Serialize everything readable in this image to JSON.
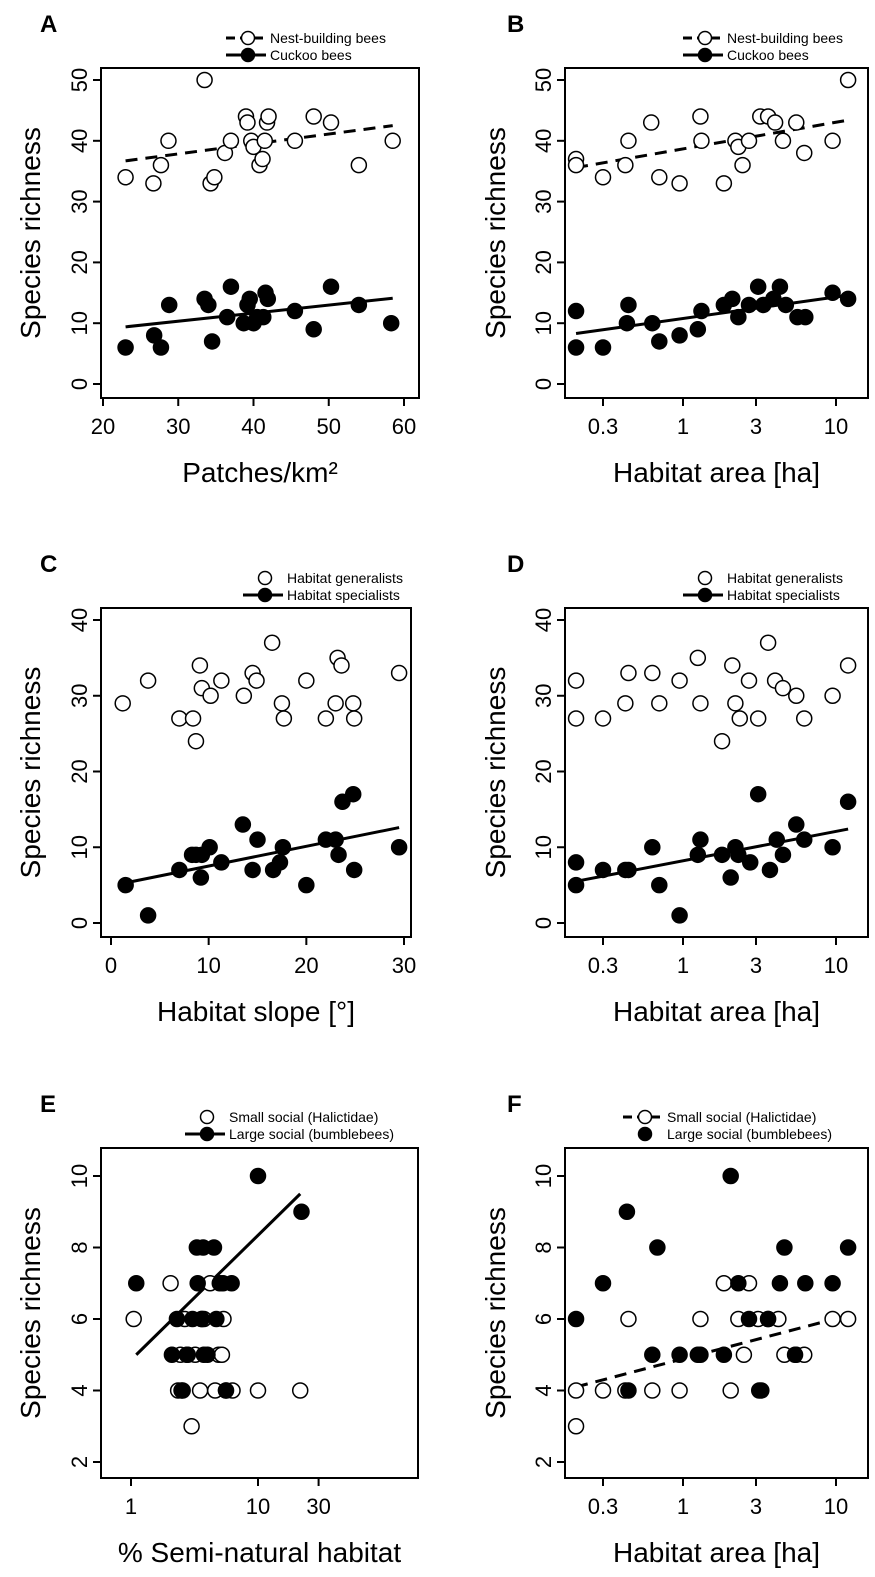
{
  "axis_label_richness": "Species richness",
  "chart_data": [
    {
      "panel": "A",
      "type": "scatter",
      "xscale": "linear",
      "xlabel": "Patches/km²",
      "ylabel": "Species richness",
      "xlim": [
        22,
        60
      ],
      "ylim": [
        0,
        50
      ],
      "xticks": [
        20,
        30,
        40,
        50,
        60
      ],
      "xtick_labels": [
        "20",
        "30",
        "40",
        "50",
        "60"
      ],
      "yticks": [
        0,
        10,
        20,
        30,
        40,
        50
      ],
      "ytick_labels": [
        "0",
        "10",
        "20",
        "30",
        "40",
        "50"
      ],
      "legend": [
        {
          "label": "Nest-building bees",
          "marker": "open",
          "line": "dashed"
        },
        {
          "label": "Cuckoo bees",
          "marker": "filled",
          "line": "solid"
        }
      ],
      "series": [
        {
          "name": "Nest-building bees",
          "marker": "open",
          "x": [
            23,
            26.7,
            27.7,
            28.7,
            33.5,
            34.3,
            34.8,
            36.2,
            37,
            39,
            39.2,
            39.7,
            40,
            40.8,
            41.2,
            41.5,
            41.8,
            42,
            45.5,
            48,
            50.3,
            54,
            58.5
          ],
          "y": [
            34,
            33,
            36,
            40,
            50,
            33,
            34,
            38,
            40,
            44,
            43,
            40,
            39,
            36,
            37,
            40,
            43,
            44,
            40,
            44,
            43,
            36,
            40
          ],
          "fit": [
            [
              23,
              36.7
            ],
            [
              58.5,
              42.5
            ]
          ]
        },
        {
          "name": "Cuckoo bees",
          "marker": "filled",
          "x": [
            23,
            26.8,
            27.7,
            28.8,
            33.5,
            34,
            34.5,
            36.5,
            37,
            38.7,
            39.2,
            39.5,
            40,
            40.5,
            41.3,
            41.6,
            41.9,
            45.5,
            48,
            50.3,
            54,
            58.3
          ],
          "y": [
            6,
            8,
            6,
            13,
            14,
            13,
            7,
            11,
            16,
            10,
            13,
            14,
            10,
            11,
            11,
            15,
            14,
            12,
            9,
            16,
            13,
            10
          ],
          "fit": [
            [
              23,
              9.4
            ],
            [
              58.5,
              14.1
            ]
          ]
        }
      ]
    },
    {
      "panel": "B",
      "type": "scatter",
      "xscale": "log",
      "xlabel": "Habitat area [ha]",
      "ylabel": "Species richness",
      "xlim": [
        0.15,
        15
      ],
      "ylim": [
        0,
        50
      ],
      "xticks": [
        0.3,
        1,
        3,
        10
      ],
      "xtick_labels": [
        "0.3",
        "1",
        "3",
        "10"
      ],
      "yticks": [
        0,
        10,
        20,
        30,
        40,
        50
      ],
      "ytick_labels": [
        "0",
        "10",
        "20",
        "30",
        "40",
        "50"
      ],
      "legend": [
        {
          "label": "Nest-building bees",
          "marker": "open",
          "line": "dashed"
        },
        {
          "label": "Cuckoo bees",
          "marker": "filled",
          "line": "solid"
        }
      ],
      "series": [
        {
          "name": "Nest-building bees",
          "marker": "open",
          "x": [
            0.2,
            0.2,
            0.3,
            0.42,
            0.44,
            0.62,
            0.7,
            0.95,
            1.3,
            1.32,
            1.85,
            2.2,
            2.3,
            2.45,
            2.7,
            3.2,
            3.6,
            4,
            4.5,
            5.5,
            6.2,
            9.5,
            12
          ],
          "y": [
            37,
            36,
            34,
            36,
            40,
            43,
            34,
            33,
            44,
            40,
            33,
            40,
            39,
            36,
            40,
            44,
            44,
            43,
            40,
            43,
            38,
            40,
            50
          ],
          "fit": [
            [
              0.2,
              35.6
            ],
            [
              12,
              43.4
            ]
          ]
        },
        {
          "name": "Cuckoo bees",
          "marker": "filled",
          "x": [
            0.2,
            0.2,
            0.3,
            0.43,
            0.44,
            0.63,
            0.7,
            0.95,
            1.25,
            1.32,
            1.85,
            2.1,
            2.3,
            2.7,
            3.1,
            3.35,
            3.9,
            4.3,
            4.7,
            5.6,
            6.3,
            9.5,
            12
          ],
          "y": [
            12,
            6,
            6,
            10,
            13,
            10,
            7,
            8,
            9,
            12,
            13,
            14,
            11,
            13,
            16,
            13,
            14,
            16,
            13,
            11,
            11,
            15,
            14
          ],
          "fit": [
            [
              0.2,
              8.3
            ],
            [
              12,
              14.6
            ]
          ]
        }
      ]
    },
    {
      "panel": "C",
      "type": "scatter",
      "xscale": "linear",
      "xlabel": "Habitat slope [°]",
      "ylabel": "Species richness",
      "xlim": [
        0,
        30.5
      ],
      "ylim": [
        0,
        40
      ],
      "xticks": [
        0,
        10,
        20,
        30
      ],
      "xtick_labels": [
        "0",
        "10",
        "20",
        "30"
      ],
      "yticks": [
        0,
        10,
        20,
        30,
        40
      ],
      "ytick_labels": [
        "0",
        "10",
        "20",
        "30",
        "40"
      ],
      "legend": [
        {
          "label": "Habitat generalists",
          "marker": "open",
          "line": "none"
        },
        {
          "label": "Habitat specialists",
          "marker": "filled",
          "line": "solid"
        }
      ],
      "series": [
        {
          "name": "Habitat generalists",
          "marker": "open",
          "x": [
            1.2,
            3.8,
            7,
            8.4,
            8.7,
            9.1,
            9.3,
            10.2,
            11.3,
            13.6,
            14.5,
            14.9,
            16.5,
            17.5,
            17.7,
            20,
            22,
            23,
            23.2,
            23.6,
            24.8,
            24.9,
            29.5
          ],
          "y": [
            29,
            32,
            27,
            27,
            24,
            34,
            31,
            30,
            32,
            30,
            33,
            32,
            37,
            29,
            27,
            32,
            27,
            29,
            35,
            34,
            29,
            27,
            33
          ],
          "fit": null
        },
        {
          "name": "Habitat specialists",
          "marker": "filled",
          "x": [
            1.5,
            3.8,
            7,
            8.3,
            8.7,
            9.2,
            9.3,
            10.1,
            11.3,
            13.5,
            14.5,
            15,
            16.6,
            17.3,
            17.6,
            20,
            22,
            23,
            23.3,
            23.7,
            24.8,
            24.9,
            29.5
          ],
          "y": [
            5,
            1,
            7,
            9,
            9,
            6,
            9,
            10,
            8,
            13,
            7,
            11,
            7,
            8,
            10,
            5,
            11,
            11,
            9,
            16,
            17,
            7,
            10
          ],
          "fit": [
            [
              1.5,
              5.3
            ],
            [
              29.5,
              12.6
            ]
          ]
        }
      ]
    },
    {
      "panel": "D",
      "type": "scatter",
      "xscale": "log",
      "xlabel": "Habitat area [ha]",
      "ylabel": "Species richness",
      "xlim": [
        0.15,
        15
      ],
      "ylim": [
        0,
        40
      ],
      "xticks": [
        0.3,
        1,
        3,
        10
      ],
      "xtick_labels": [
        "0.3",
        "1",
        "3",
        "10"
      ],
      "yticks": [
        0,
        10,
        20,
        30,
        40
      ],
      "ytick_labels": [
        "0",
        "10",
        "20",
        "30",
        "40"
      ],
      "legend": [
        {
          "label": "Habitat generalists",
          "marker": "open",
          "line": "none"
        },
        {
          "label": "Habitat specialists",
          "marker": "filled",
          "line": "solid"
        }
      ],
      "series": [
        {
          "name": "Habitat generalists",
          "marker": "open",
          "x": [
            0.2,
            0.2,
            0.3,
            0.42,
            0.44,
            0.63,
            0.7,
            0.95,
            1.25,
            1.3,
            1.8,
            2.1,
            2.2,
            2.35,
            2.7,
            3.1,
            3.6,
            4,
            4.5,
            5.5,
            6.2,
            9.5,
            12
          ],
          "y": [
            32,
            27,
            27,
            29,
            33,
            33,
            29,
            32,
            35,
            29,
            24,
            34,
            29,
            27,
            32,
            27,
            37,
            32,
            31,
            30,
            27,
            30,
            34
          ],
          "fit": null
        },
        {
          "name": "Habitat specialists",
          "marker": "filled",
          "x": [
            0.2,
            0.2,
            0.3,
            0.42,
            0.44,
            0.63,
            0.7,
            0.95,
            1.25,
            1.3,
            1.8,
            2.05,
            2.2,
            2.3,
            2.75,
            3.1,
            3.7,
            4.1,
            4.5,
            5.5,
            6.2,
            9.5,
            12
          ],
          "y": [
            8,
            5,
            7,
            7,
            7,
            10,
            5,
            1,
            9,
            11,
            9,
            6,
            10,
            9,
            8,
            17,
            7,
            11,
            9,
            13,
            11,
            10,
            16
          ],
          "fit": [
            [
              0.2,
              5.5
            ],
            [
              12,
              12.4
            ]
          ]
        }
      ]
    },
    {
      "panel": "E",
      "type": "scatter",
      "xscale": "log",
      "xlabel": "% Semi-natural habitat",
      "ylabel": "Species richness",
      "xlim": [
        0.8,
        40
      ],
      "ylim": [
        1.8,
        11
      ],
      "xticks": [
        1,
        10,
        30
      ],
      "xtick_labels": [
        "1",
        "10",
        "30"
      ],
      "yticks": [
        2,
        4,
        6,
        8,
        10
      ],
      "ytick_labels": [
        "2",
        "4",
        "6",
        "8",
        "10"
      ],
      "legend": [
        {
          "label": "Small social (Halictidae)",
          "marker": "open",
          "line": "none"
        },
        {
          "label": "Large social (bumblebees)",
          "marker": "filled",
          "line": "solid"
        }
      ],
      "series": [
        {
          "name": "Small social (Halictidae)",
          "marker": "open",
          "x": [
            1.05,
            2.05,
            2.35,
            2.45,
            2.55,
            2.65,
            2.75,
            3,
            3.2,
            3.5,
            3.6,
            3.75,
            4.2,
            4.6,
            4.9,
            5.2,
            5.35,
            5.6,
            6.3,
            10,
            21.5
          ],
          "y": [
            6,
            7,
            4,
            5,
            4,
            6,
            5,
            3,
            5,
            4,
            6,
            6,
            7,
            4,
            5,
            5,
            6,
            4,
            4,
            4,
            4
          ],
          "fit": null
        },
        {
          "name": "Large social (bumblebees)",
          "marker": "filled",
          "x": [
            1.1,
            2.1,
            2.3,
            2.5,
            2.8,
            3.05,
            3.3,
            3.35,
            3.6,
            3.7,
            3.75,
            4,
            4.5,
            4.7,
            5.0,
            5.3,
            5.6,
            6.2,
            10,
            22
          ],
          "y": [
            7,
            5,
            6,
            4,
            5,
            6,
            8,
            7,
            6,
            8,
            5,
            5,
            8,
            6,
            7,
            7,
            4,
            7,
            10,
            9
          ],
          "fit": [
            [
              1.1,
              5
            ],
            [
              21.5,
              9.5
            ]
          ]
        }
      ]
    },
    {
      "panel": "F",
      "type": "scatter",
      "xscale": "log",
      "xlabel": "Habitat area [ha]",
      "ylabel": "Species richness",
      "xlim": [
        0.15,
        15
      ],
      "ylim": [
        1.8,
        11
      ],
      "xticks": [
        0.3,
        1,
        3,
        10
      ],
      "xtick_labels": [
        "0.3",
        "1",
        "3",
        "10"
      ],
      "yticks": [
        2,
        4,
        6,
        8,
        10
      ],
      "ytick_labels": [
        "2",
        "4",
        "6",
        "8",
        "10"
      ],
      "legend": [
        {
          "label": "Small social (Halictidae)",
          "marker": "open",
          "line": "dashed"
        },
        {
          "label": "Large social (bumblebees)",
          "marker": "filled",
          "line": "none"
        }
      ],
      "series": [
        {
          "name": "Small social (Halictidae)",
          "marker": "open",
          "x": [
            0.2,
            0.2,
            0.3,
            0.42,
            0.44,
            0.63,
            0.95,
            1.3,
            1.85,
            2.05,
            2.3,
            2.5,
            2.7,
            3.1,
            3.6,
            4.2,
            4.6,
            5.5,
            6.2,
            9.5,
            12
          ],
          "y": [
            4,
            3,
            4,
            4,
            6,
            4,
            4,
            6,
            7,
            4,
            6,
            5,
            7,
            6,
            6,
            6,
            5,
            5,
            5,
            6,
            6
          ],
          "fit": [
            [
              0.2,
              4.1
            ],
            [
              12,
              6.1
            ]
          ]
        },
        {
          "name": "Large social (bumblebees)",
          "marker": "filled",
          "x": [
            0.2,
            0.3,
            0.43,
            0.44,
            0.63,
            0.68,
            0.95,
            1.25,
            1.3,
            1.85,
            2.05,
            2.3,
            2.7,
            3.15,
            3.25,
            3.6,
            4.3,
            4.6,
            5.4,
            6.3,
            9.5,
            12
          ],
          "y": [
            6,
            7,
            9,
            4,
            5,
            8,
            5,
            5,
            5,
            5,
            10,
            7,
            6,
            4,
            4,
            6,
            7,
            8,
            5,
            7,
            7,
            8
          ],
          "fit": null
        }
      ]
    }
  ]
}
